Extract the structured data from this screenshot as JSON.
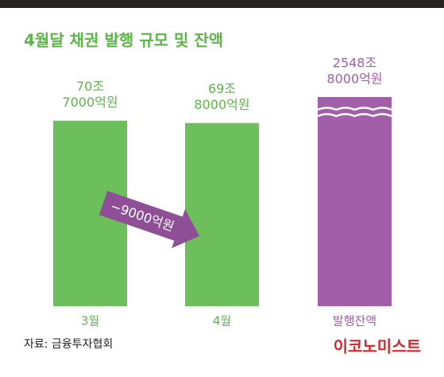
{
  "chart_data": {
    "type": "bar",
    "title": "4월달 채권 발행 규모 및 잔액",
    "categories": [
      "3월",
      "4월",
      "발행잔액"
    ],
    "values": [
      70.7,
      69.8,
      2548.8
    ],
    "value_labels": [
      [
        "70조",
        "7000억원"
      ],
      [
        "69조",
        "8000억원"
      ],
      [
        "2548조",
        "8000억원"
      ]
    ],
    "colors": [
      "#6cbf5a",
      "#6cbf5a",
      "#a25ea8"
    ],
    "broken": [
      false,
      false,
      true
    ],
    "annotation": "−9000억원",
    "source": "자료: 금융투자협회",
    "brand": "이코노미스트"
  }
}
